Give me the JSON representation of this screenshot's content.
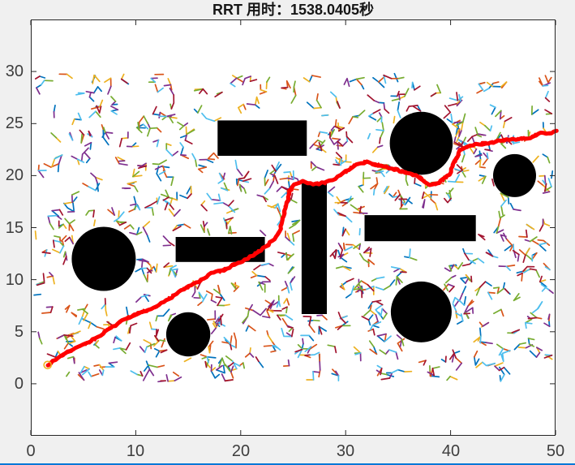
{
  "window": {
    "background": "#f0f0f0",
    "bottom_border_color": "#0078d7"
  },
  "chart_data": {
    "type": "scatter",
    "title": "RRT 用时：1538.0405秒",
    "elapsed_seconds": 1538.0405,
    "algorithm": "RRT",
    "xlabel": "",
    "ylabel": "",
    "xlim": [
      0,
      50
    ],
    "ylim": [
      -5,
      35
    ],
    "xticks": [
      0,
      10,
      20,
      30,
      40,
      50
    ],
    "yticks": [
      0,
      5,
      10,
      15,
      20,
      25,
      30
    ],
    "grid": false,
    "legend": null,
    "axes_color": "#262626",
    "plot_bg": "#ffffff",
    "obstacles": {
      "color": "#000000",
      "circles": [
        {
          "cx": 6.95,
          "cy": 12.0,
          "r": 3.05
        },
        {
          "cx": 15.0,
          "cy": 4.75,
          "r": 2.1
        },
        {
          "cx": 37.2,
          "cy": 23.1,
          "r": 3.0
        },
        {
          "cx": 46.1,
          "cy": 20.0,
          "r": 2.05
        },
        {
          "cx": 37.2,
          "cy": 6.9,
          "r": 2.9
        }
      ],
      "rects": [
        {
          "x": 17.8,
          "y": 21.9,
          "w": 8.5,
          "h": 3.4
        },
        {
          "x": 13.8,
          "y": 11.7,
          "w": 8.5,
          "h": 2.4
        },
        {
          "x": 25.8,
          "y": 6.7,
          "w": 2.4,
          "h": 12.6
        },
        {
          "x": 31.8,
          "y": 13.7,
          "w": 10.6,
          "h": 2.5
        }
      ]
    },
    "path": {
      "color": "#ff0000",
      "start_marker_color": "#EDB120",
      "points": [
        [
          1.6,
          1.8
        ],
        [
          2.6,
          2.5
        ],
        [
          4.0,
          3.3
        ],
        [
          5.2,
          3.8
        ],
        [
          6.4,
          4.5
        ],
        [
          7.8,
          5.5
        ],
        [
          9.2,
          6.3
        ],
        [
          10.6,
          6.9
        ],
        [
          12.0,
          7.4
        ],
        [
          13.4,
          8.3
        ],
        [
          14.6,
          9.1
        ],
        [
          16.0,
          9.8
        ],
        [
          17.2,
          10.6
        ],
        [
          18.4,
          10.9
        ],
        [
          19.4,
          11.5
        ],
        [
          20.4,
          11.9
        ],
        [
          21.4,
          12.5
        ],
        [
          22.4,
          13.2
        ],
        [
          23.2,
          13.9
        ],
        [
          23.8,
          14.9
        ],
        [
          24.1,
          16.1
        ],
        [
          24.4,
          17.4
        ],
        [
          24.7,
          18.5
        ],
        [
          25.1,
          19.1
        ],
        [
          25.9,
          19.4
        ],
        [
          26.9,
          19.2
        ],
        [
          28.0,
          19.3
        ],
        [
          29.0,
          19.7
        ],
        [
          30.0,
          20.4
        ],
        [
          31.0,
          21.1
        ],
        [
          32.0,
          21.3
        ],
        [
          33.1,
          21.0
        ],
        [
          34.4,
          20.7
        ],
        [
          35.7,
          20.3
        ],
        [
          36.9,
          19.9
        ],
        [
          38.0,
          19.1
        ],
        [
          38.9,
          19.3
        ],
        [
          39.9,
          20.1
        ],
        [
          40.4,
          21.4
        ],
        [
          40.9,
          22.4
        ],
        [
          41.6,
          22.8
        ],
        [
          42.4,
          23.0
        ],
        [
          43.6,
          23.1
        ],
        [
          44.8,
          23.4
        ],
        [
          46.2,
          23.5
        ],
        [
          47.6,
          23.6
        ],
        [
          48.6,
          24.2
        ],
        [
          49.4,
          24.0
        ],
        [
          50.1,
          24.3
        ]
      ]
    },
    "tree": {
      "colors": [
        "#0072BD",
        "#D95319",
        "#EDB120",
        "#7E2F8E",
        "#77AC30",
        "#4DBEEE",
        "#A2142F"
      ],
      "clusters": 620,
      "region": [
        0.3,
        0.15,
        49.8,
        29.8
      ],
      "segment_length": [
        0.45,
        0.85
      ],
      "seed": 20240715
    }
  }
}
